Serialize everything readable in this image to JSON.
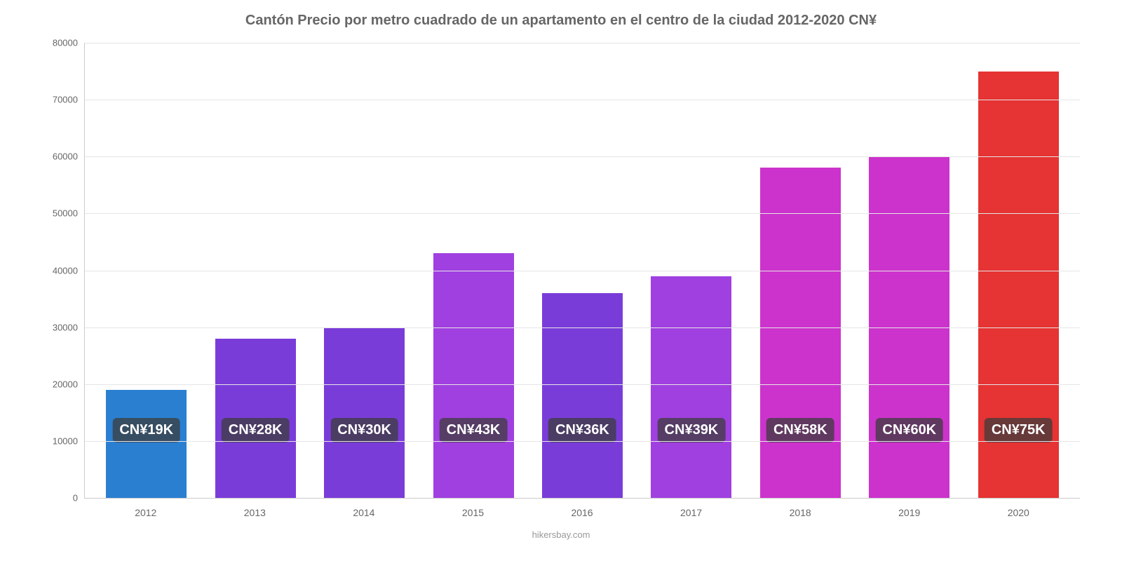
{
  "chart": {
    "type": "bar",
    "title": "Cantón Precio por metro cuadrado de un apartamento en el centro de la ciudad 2012-2020 CN¥",
    "title_fontsize": 20,
    "title_color": "#666666",
    "source_caption": "hikersbay.com",
    "background_color": "#ffffff",
    "grid_color": "#e6e6e6",
    "axis_color": "#cccccc",
    "label_color": "#666666",
    "label_fontsize": 13,
    "ymin": 0,
    "ymax": 80000,
    "ytick_step": 10000,
    "yticks": [
      0,
      10000,
      20000,
      30000,
      40000,
      50000,
      60000,
      70000,
      80000
    ],
    "bar_width_ratio": 0.74,
    "badge_bg": "rgba(60,60,60,0.75)",
    "badge_text_color": "#ffffff",
    "badge_fontsize": 20,
    "badge_y_offset": 14000,
    "categories": [
      "2012",
      "2013",
      "2014",
      "2015",
      "2016",
      "2017",
      "2018",
      "2019",
      "2020"
    ],
    "values": [
      19000,
      28000,
      30000,
      43000,
      36000,
      39000,
      58000,
      60000,
      75000
    ],
    "value_labels": [
      "CN¥19K",
      "CN¥28K",
      "CN¥30K",
      "CN¥43K",
      "CN¥36K",
      "CN¥39K",
      "CN¥58K",
      "CN¥60K",
      "CN¥75K"
    ],
    "bar_colors": [
      "#2a7fd1",
      "#7a3cd9",
      "#7a3cd9",
      "#a040e0",
      "#7a3cd9",
      "#a040e0",
      "#cc33cc",
      "#cc33cc",
      "#e63333"
    ]
  }
}
